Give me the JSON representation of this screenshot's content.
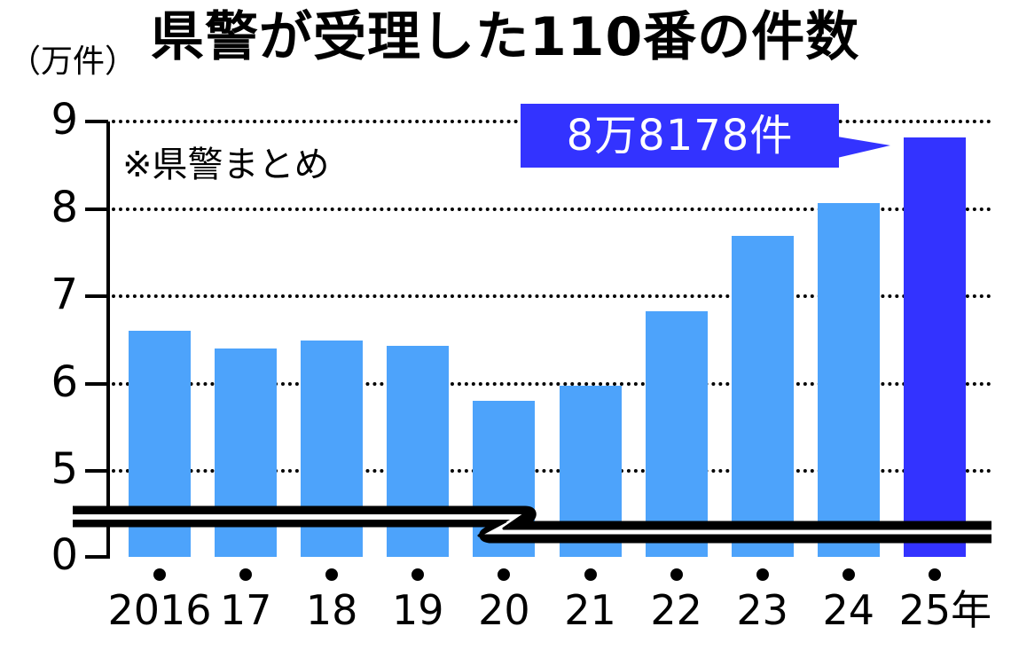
{
  "title": "県警が受理した110番の件数",
  "unit_label": "（万件）",
  "note": "※県警まとめ",
  "callout": {
    "text": "8万8178件",
    "color": "#3333ff"
  },
  "colors": {
    "bar": "#4da3fb",
    "highlight_bar": "#3333ff",
    "grid": "#000000"
  },
  "y_ticks": [
    "9",
    "8",
    "7",
    "6",
    "5",
    "0"
  ],
  "x_labels": [
    "2016",
    "17",
    "18",
    "19",
    "20",
    "21",
    "22",
    "23",
    "24",
    "25年"
  ],
  "chart_data": {
    "type": "bar",
    "title": "県警が受理した110番の件数",
    "subtitle": "※県警まとめ",
    "xlabel": "",
    "ylabel": "万件",
    "categories": [
      "2016",
      "2017",
      "2018",
      "2019",
      "2020",
      "2021",
      "2022",
      "2023",
      "2024",
      "2025"
    ],
    "series": [
      {
        "name": "110番受理件数（万件）",
        "values": [
          6.6,
          6.4,
          6.49,
          6.43,
          5.8,
          5.97,
          6.83,
          7.69,
          8.07,
          8.8178
        ]
      }
    ],
    "ylim": [
      0,
      9
    ],
    "y_axis_break": [
      0,
      4.5
    ],
    "yticks": [
      0,
      5,
      6,
      7,
      8,
      9
    ],
    "grid": true,
    "highlight": {
      "category": "2025",
      "label": "8万8178件"
    },
    "legend": null
  }
}
